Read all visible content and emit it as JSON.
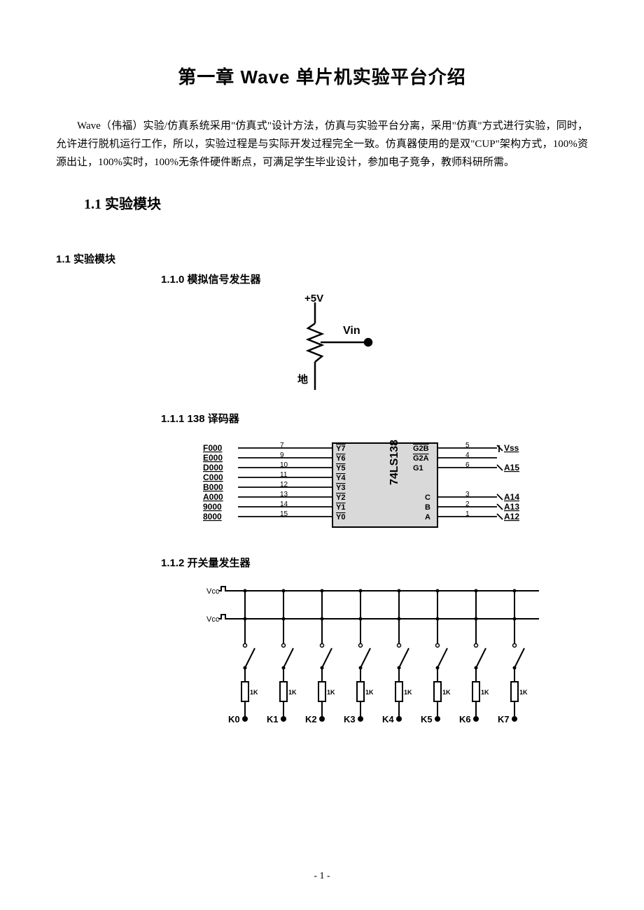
{
  "title": "第一章  Wave 单片机实验平台介绍",
  "paragraph": "Wave（伟福）实验/仿真系统采用\"仿真式\"设计方法，仿真与实验平台分离，采用\"仿真\"方式进行实验，同时，允许进行脱机运行工作，所以，实验过程是与实际开发过程完全一致。仿真器使用的是双\"CUP\"架构方式，100%资源出让，100%实时，100%无条件硬件断点，可满足学生毕业设计，参加电子竞争，教师科研所需。",
  "section_1_1": "1.1  实验模块",
  "sub_1_1": "1.1  实验模块",
  "module0": {
    "heading": "1.1.0  模拟信号发生器",
    "type": "potentiometer",
    "top_label": "+5V",
    "mid_label": "Vin",
    "bottom_label": "地",
    "stroke": "#000000",
    "stroke_width": 2.5
  },
  "module1": {
    "heading": "1.1.1  138 译码器",
    "type": "decoder-ic",
    "chip_label_v": "74LS138",
    "left_addr": [
      "F000",
      "E000",
      "D000",
      "C000",
      "B000",
      "A000",
      "9000",
      "8000"
    ],
    "left_pin": [
      "7",
      "9",
      "10",
      "11",
      "12",
      "13",
      "14",
      "15"
    ],
    "in_pin": [
      "Y7",
      "Y6",
      "Y5",
      "Y4",
      "Y3",
      "Y2",
      "Y1",
      "Y0"
    ],
    "right_top_pin": [
      "G2B",
      "G2A",
      "G1"
    ],
    "right_top_num": [
      "5",
      "4",
      "6"
    ],
    "right_top_lbl": [
      "Vss",
      "",
      "A15"
    ],
    "right_bot_ctrl": [
      "C",
      "B",
      "A"
    ],
    "right_bot_num": [
      "3",
      "2",
      "1"
    ],
    "right_bot_lbl": [
      "A14",
      "A13",
      "A12"
    ],
    "stroke": "#000000",
    "fill_box": "#d9d9d9"
  },
  "module2": {
    "heading": "1.1.2  开关量发生器",
    "type": "switch-array",
    "vcc_label": "Vcc",
    "r_label": "1K",
    "k_labels": [
      "K0",
      "K1",
      "K2",
      "K3",
      "K4",
      "K5",
      "K6",
      "K7"
    ],
    "stroke": "#000000",
    "stroke_width": 2
  },
  "page_number": "- 1 -",
  "colors": {
    "bg": "#ffffff",
    "ink": "#000000",
    "chip_fill": "#d9d9d9"
  }
}
